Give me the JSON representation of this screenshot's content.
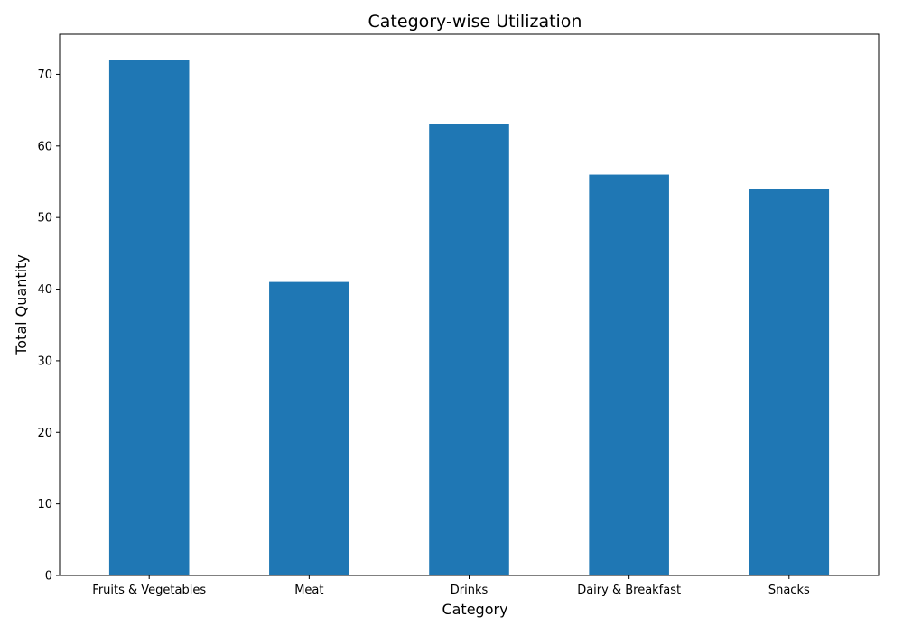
{
  "chart_data": {
    "type": "bar",
    "title": "Category-wise Utilization",
    "xlabel": "Category",
    "ylabel": "Total Quantity",
    "categories": [
      "Fruits & Vegetables",
      "Meat",
      "Drinks",
      "Dairy & Breakfast",
      "Snacks"
    ],
    "values": [
      72,
      41,
      63,
      56,
      54
    ],
    "ylim": [
      0,
      75.6
    ],
    "yticks": [
      0,
      10,
      20,
      30,
      40,
      50,
      60,
      70
    ],
    "bar_color": "#1f77b4",
    "grid": false,
    "legend": "none"
  }
}
